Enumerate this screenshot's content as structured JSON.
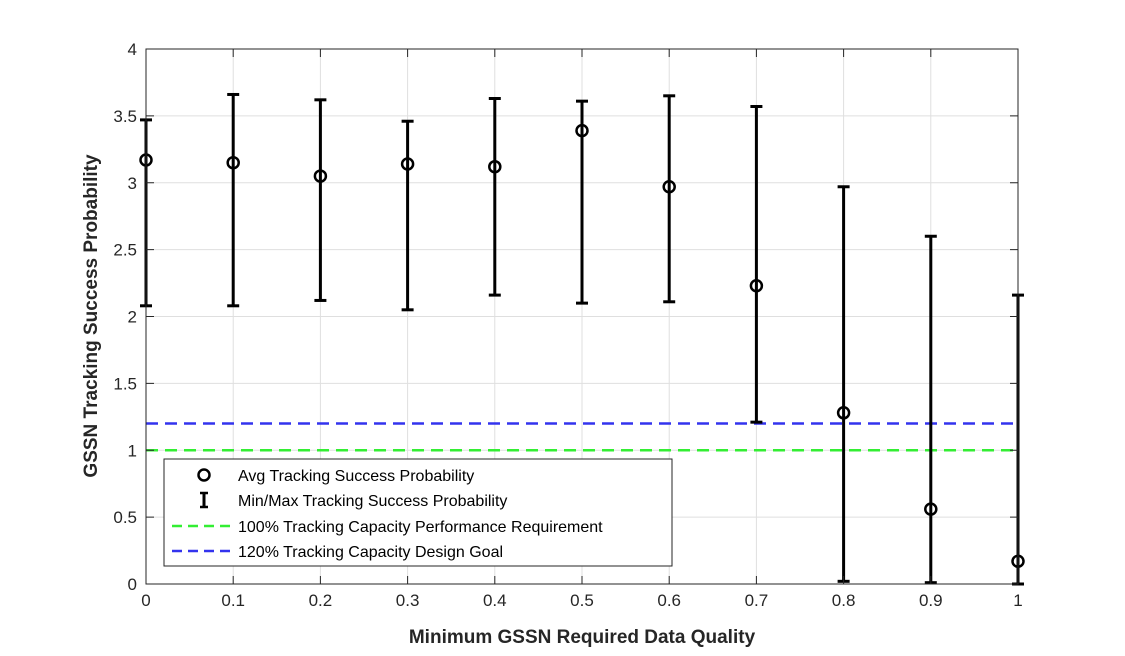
{
  "chart_data": {
    "type": "scatter",
    "xlabel": "Minimum GSSN Required Data Quality",
    "ylabel": "GSSN Tracking Success Probability",
    "xlim": [
      0,
      1
    ],
    "ylim": [
      0,
      4
    ],
    "x_ticks": [
      "0",
      "0.1",
      "0.2",
      "0.3",
      "0.4",
      "0.5",
      "0.6",
      "0.7",
      "0.8",
      "0.9",
      "1"
    ],
    "y_ticks": [
      "0",
      "0.5",
      "1",
      "1.5",
      "2",
      "2.5",
      "3",
      "3.5",
      "4"
    ],
    "grid": true,
    "legend_position": "bottom-left",
    "x": [
      0,
      0.1,
      0.2,
      0.3,
      0.4,
      0.5,
      0.6,
      0.7,
      0.8,
      0.9,
      1
    ],
    "series": [
      {
        "name": "Avg Tracking Success Probability",
        "style": "circle-marker",
        "color": "#000000",
        "values": [
          3.17,
          3.15,
          3.05,
          3.14,
          3.12,
          3.39,
          2.97,
          2.23,
          1.28,
          0.56,
          0.17
        ]
      },
      {
        "name": "Min/Max Tracking Success Probability",
        "style": "errorbar",
        "color": "#000000",
        "min": [
          2.08,
          2.08,
          2.12,
          2.05,
          2.16,
          2.1,
          2.11,
          1.21,
          0.02,
          0.01,
          0.0
        ],
        "max": [
          3.47,
          3.66,
          3.62,
          3.46,
          3.63,
          3.61,
          3.65,
          3.57,
          2.97,
          2.6,
          2.16
        ]
      },
      {
        "name": "100% Tracking Capacity Performance Requirement",
        "style": "dashed-line",
        "color": "#33ee33",
        "value": 1.0
      },
      {
        "name": "120% Tracking Capacity Design Goal",
        "style": "dashed-line",
        "color": "#3333ee",
        "value": 1.2
      }
    ]
  }
}
